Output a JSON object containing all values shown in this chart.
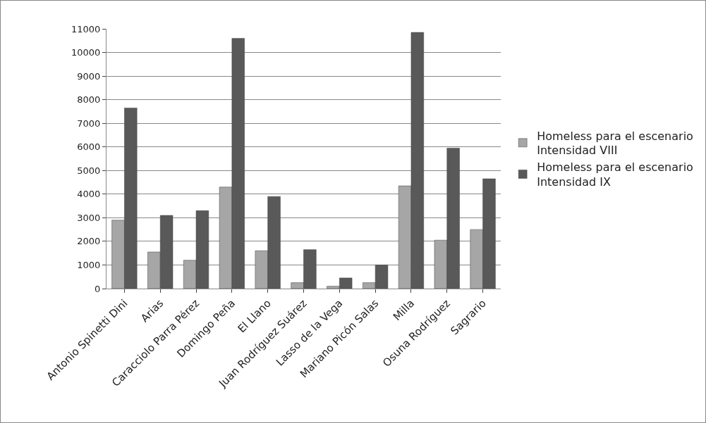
{
  "chart_data": {
    "type": "bar",
    "categories": [
      "Antonio Spinetti Dini",
      "Arias",
      "Caracciolo Parra Pérez",
      "Domingo Peña",
      "El Llano",
      "Juan Rodríguez Suárez",
      "Lasso de la Vega",
      "Mariano Picón Salas",
      "Milla",
      "Osuna Rodríguez",
      "Sagrario"
    ],
    "series": [
      {
        "name": "Homeless para el escenario Intensidad VIII",
        "color": "#a6a6a6",
        "values": [
          2900,
          1550,
          1200,
          4300,
          1600,
          250,
          100,
          250,
          4350,
          2050,
          2500
        ]
      },
      {
        "name": "Homeless para el escenario Intensidad IX",
        "color": "#595959",
        "values": [
          7650,
          3100,
          3300,
          10600,
          3900,
          1650,
          450,
          1000,
          10850,
          5950,
          4650
        ]
      }
    ],
    "ylim": [
      0,
      11000
    ],
    "yticks": [
      0,
      1000,
      2000,
      3000,
      4000,
      5000,
      6000,
      7000,
      8000,
      9000,
      10000,
      11000
    ],
    "grid": "y",
    "legend": "right"
  }
}
